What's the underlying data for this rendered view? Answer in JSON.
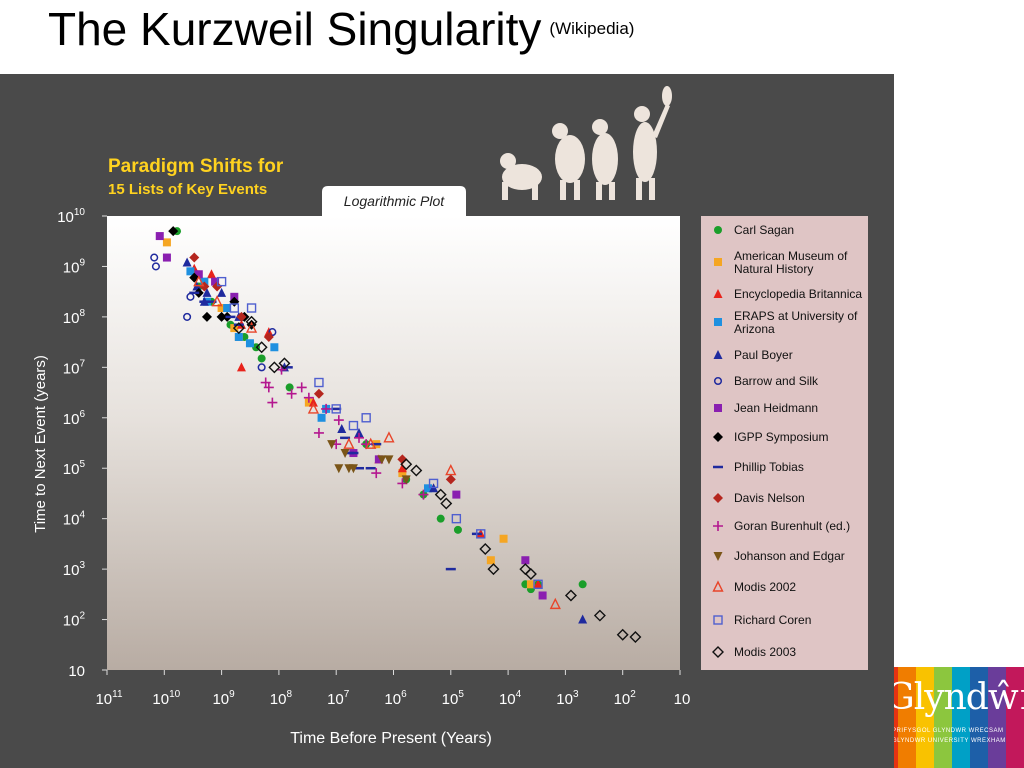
{
  "slide": {
    "title": "The Kurzweil Singularity",
    "title_note": "(Wikipedia)",
    "logo": {
      "wordmark": "Glyndŵr",
      "line1": "PRIFYSGOL GLYNDWR WRECSAM",
      "line2": "GLYNDWR UNIVERSITY WREXHAM"
    }
  },
  "chart_data": {
    "type": "scatter",
    "title": "Paradigm Shifts for",
    "subtitle": "15 Lists of Key Events",
    "tab_label": "Logarithmic Plot",
    "xlabel": "Time Before Present (Years)",
    "ylabel": "Time to Next Event (years)",
    "x_scale": "log-reversed",
    "y_scale": "log",
    "xlim": [
      100000000000,
      10
    ],
    "ylim": [
      10,
      10000000000
    ],
    "x_ticks": [
      {
        "value": 100000000000,
        "label_base": "10",
        "label_exp": "11"
      },
      {
        "value": 10000000000,
        "label_base": "10",
        "label_exp": "10"
      },
      {
        "value": 1000000000,
        "label_base": "10",
        "label_exp": "9"
      },
      {
        "value": 100000000,
        "label_base": "10",
        "label_exp": "8"
      },
      {
        "value": 10000000,
        "label_base": "10",
        "label_exp": "7"
      },
      {
        "value": 1000000,
        "label_base": "10",
        "label_exp": "6"
      },
      {
        "value": 100000,
        "label_base": "10",
        "label_exp": "5"
      },
      {
        "value": 10000,
        "label_base": "10",
        "label_exp": "4"
      },
      {
        "value": 1000,
        "label_base": "10",
        "label_exp": "3"
      },
      {
        "value": 100,
        "label_base": "10",
        "label_exp": "2"
      },
      {
        "value": 10,
        "label_base": "10",
        "label_exp": ""
      }
    ],
    "y_ticks": [
      {
        "value": 10000000000,
        "label_base": "10",
        "label_exp": "10"
      },
      {
        "value": 1000000000,
        "label_base": "10",
        "label_exp": "9"
      },
      {
        "value": 100000000,
        "label_base": "10",
        "label_exp": "8"
      },
      {
        "value": 10000000,
        "label_base": "10",
        "label_exp": "7"
      },
      {
        "value": 1000000,
        "label_base": "10",
        "label_exp": "6"
      },
      {
        "value": 100000,
        "label_base": "10",
        "label_exp": "5"
      },
      {
        "value": 10000,
        "label_base": "10",
        "label_exp": "4"
      },
      {
        "value": 1000,
        "label_base": "10",
        "label_exp": "3"
      },
      {
        "value": 100,
        "label_base": "10",
        "label_exp": "2"
      },
      {
        "value": 10,
        "label_base": "10",
        "label_exp": ""
      }
    ],
    "legend_position": "right",
    "colors": {
      "background": "#4a4a4a",
      "title": "#ffd21f",
      "ticks": "#ffffff"
    },
    "series": [
      {
        "name": "Carl Sagan",
        "marker": "circle",
        "color": "#1a9e2a",
        "points": [
          [
            6000000000,
            5000000000
          ],
          [
            2500000000,
            400000000
          ],
          [
            1500000000,
            200000000
          ],
          [
            700000000,
            70000000
          ],
          [
            400000000,
            40000000
          ],
          [
            250000000,
            25000000
          ],
          [
            200000000,
            15000000
          ],
          [
            65000000,
            4000000
          ],
          [
            3000000,
            300000
          ],
          [
            600000,
            60000
          ],
          [
            300000,
            30000
          ],
          [
            150000,
            10000
          ],
          [
            75000,
            6000
          ],
          [
            5000,
            500
          ],
          [
            4000,
            400
          ],
          [
            3000,
            500
          ],
          [
            500,
            500
          ]
        ]
      },
      {
        "name": "American Museum of Natural History",
        "marker": "square",
        "color": "#f5a623",
        "points": [
          [
            9000000000,
            3000000000
          ],
          [
            2800000000,
            700000000
          ],
          [
            1000000000,
            150000000
          ],
          [
            600000000,
            60000000
          ],
          [
            500000000,
            40000000
          ],
          [
            30000000,
            2000000
          ],
          [
            2000000,
            300000
          ],
          [
            700000,
            80000
          ],
          [
            20000,
            1500
          ],
          [
            12000,
            4000
          ],
          [
            4000,
            500
          ]
        ]
      },
      {
        "name": "Encyclopedia Britannica",
        "marker": "triangle",
        "color": "#e8231b",
        "points": [
          [
            3000000000,
            900000000
          ],
          [
            1500000000,
            700000000
          ],
          [
            450000000,
            70000000
          ],
          [
            450000000,
            10000000
          ],
          [
            150000000,
            50000000
          ],
          [
            25000000,
            2000000
          ],
          [
            1800000,
            150000
          ],
          [
            700000,
            100000
          ],
          [
            30000,
            5000
          ],
          [
            3000,
            500
          ]
        ]
      },
      {
        "name": "ERAPS at University of Arizona",
        "marker": "square",
        "color": "#1e90e0",
        "points": [
          [
            3500000000,
            800000000
          ],
          [
            2000000000,
            500000000
          ],
          [
            1800000000,
            200000000
          ],
          [
            800000000,
            150000000
          ],
          [
            500000000,
            40000000
          ],
          [
            320000000,
            30000000
          ],
          [
            120000000,
            25000000
          ],
          [
            18000000,
            1000000
          ],
          [
            15000000,
            1500000
          ],
          [
            250000,
            40000
          ]
        ]
      },
      {
        "name": "Paul Boyer",
        "marker": "triangle",
        "color": "#1f2a9e",
        "points": [
          [
            4000000000,
            1200000000
          ],
          [
            2700000000,
            400000000
          ],
          [
            2000000000,
            200000000
          ],
          [
            1800000000,
            300000000
          ],
          [
            1000000000,
            300000000
          ],
          [
            500000000,
            100000000
          ],
          [
            80000000,
            10000000
          ],
          [
            8000000,
            600000
          ],
          [
            4000000,
            500000
          ],
          [
            200000,
            40000
          ],
          [
            500,
            100
          ]
        ]
      },
      {
        "name": "Barrow and Silk",
        "marker": "ring",
        "color": "#1f2a9e",
        "points": [
          [
            15000000000,
            1500000000
          ],
          [
            14000000000,
            1000000000
          ],
          [
            4000000000,
            100000000
          ],
          [
            3500000000,
            250000000
          ],
          [
            200000000,
            10000000
          ],
          [
            130000000,
            50000000
          ]
        ]
      },
      {
        "name": "Jean Heidmann",
        "marker": "square",
        "color": "#8a1fb0",
        "points": [
          [
            12000000000,
            4000000000
          ],
          [
            9000000000,
            1500000000
          ],
          [
            2500000000,
            700000000
          ],
          [
            1300000000,
            500000000
          ],
          [
            600000000,
            250000000
          ],
          [
            5000000,
            200000
          ],
          [
            1800000,
            150000
          ],
          [
            80000,
            30000
          ],
          [
            5000,
            1500
          ],
          [
            2500,
            300
          ]
        ]
      },
      {
        "name": "IGPP Symposium",
        "marker": "diamond",
        "color": "#000000",
        "points": [
          [
            7000000000,
            5000000000
          ],
          [
            3000000000,
            600000000
          ],
          [
            2500000000,
            300000000
          ],
          [
            1800000000,
            100000000
          ],
          [
            1000000000,
            100000000
          ],
          [
            800000000,
            100000000
          ],
          [
            600000000,
            200000000
          ],
          [
            400000000,
            100000000
          ],
          [
            300000000,
            70000000
          ]
        ]
      },
      {
        "name": "Phillip Tobias",
        "marker": "dash",
        "color": "#1f2a9e",
        "points": [
          [
            3000000000,
            300000000
          ],
          [
            2000000000,
            200000000
          ],
          [
            1500000000,
            200000000
          ],
          [
            700000000,
            100000000
          ],
          [
            500000000,
            70000000
          ],
          [
            70000000,
            10000000
          ],
          [
            10000000,
            1500000
          ],
          [
            7000000,
            400000
          ],
          [
            6000000,
            200000
          ],
          [
            5000000,
            200000
          ],
          [
            4000000,
            100000
          ],
          [
            2500000,
            100000
          ],
          [
            2000000,
            300000
          ],
          [
            100000,
            1000
          ],
          [
            35000,
            5000
          ]
        ]
      },
      {
        "name": "Davis Nelson",
        "marker": "diamond",
        "color": "#b5261e",
        "points": [
          [
            3000000000,
            1500000000
          ],
          [
            2000000000,
            400000000
          ],
          [
            1200000000,
            400000000
          ],
          [
            450000000,
            100000000
          ],
          [
            150000000,
            40000000
          ],
          [
            20000000,
            3000000
          ],
          [
            700000,
            150000
          ],
          [
            100000,
            60000
          ]
        ]
      },
      {
        "name": "Goran Burenhult (ed.)",
        "marker": "plus",
        "color": "#b4178f",
        "points": [
          [
            170000000,
            5000000
          ],
          [
            150000000,
            4000000
          ],
          [
            130000000,
            2000000
          ],
          [
            90000000,
            9000000
          ],
          [
            60000000,
            3000000
          ],
          [
            40000000,
            4000000
          ],
          [
            30000000,
            2500000
          ],
          [
            20000000,
            500000
          ],
          [
            15000000,
            1500000
          ],
          [
            10000000,
            300000
          ],
          [
            9000000,
            900000
          ],
          [
            4000000,
            400000
          ],
          [
            3000000,
            300000
          ],
          [
            2000000,
            80000
          ],
          [
            700000,
            50000
          ],
          [
            300000,
            30000
          ]
        ]
      },
      {
        "name": "Johanson and Edgar",
        "marker": "invtriangle",
        "color": "#7a5518",
        "points": [
          [
            12000000,
            300000
          ],
          [
            9000000,
            100000
          ],
          [
            7000000,
            200000
          ],
          [
            6000000,
            100000
          ],
          [
            5000000,
            100000
          ],
          [
            1600000,
            150000
          ],
          [
            1200000,
            150000
          ],
          [
            600000,
            60000
          ]
        ]
      },
      {
        "name": "Modis 2002",
        "marker": "opentriangle",
        "color": "#e8452a",
        "points": [
          [
            2500000000,
            500000000
          ],
          [
            1200000000,
            200000000
          ],
          [
            300000000,
            60000000
          ],
          [
            25000000,
            1500000
          ],
          [
            6000000,
            300000
          ],
          [
            2500000,
            300000
          ],
          [
            1200000,
            400000
          ],
          [
            100000,
            90000
          ],
          [
            1500,
            200
          ]
        ]
      },
      {
        "name": "Richard Coren",
        "marker": "opensquare",
        "color": "#4f5fcf",
        "points": [
          [
            1000000000,
            500000000
          ],
          [
            600000000,
            150000000
          ],
          [
            300000000,
            150000000
          ],
          [
            20000000,
            5000000
          ],
          [
            10000000,
            1500000
          ],
          [
            5000000,
            700000
          ],
          [
            3000000,
            1000000
          ],
          [
            200000,
            50000
          ],
          [
            80000,
            10000
          ],
          [
            30000,
            5000
          ],
          [
            3000,
            500
          ]
        ]
      },
      {
        "name": "Modis 2003",
        "marker": "opendiamond",
        "color": "#111111",
        "points": [
          [
            500000000,
            60000000
          ],
          [
            300000000,
            80000000
          ],
          [
            200000000,
            25000000
          ],
          [
            120000000,
            10000000
          ],
          [
            80000000,
            12000000
          ],
          [
            600000,
            120000
          ],
          [
            400000,
            90000
          ],
          [
            150000,
            30000
          ],
          [
            120000,
            20000
          ],
          [
            25000,
            2500
          ],
          [
            18000,
            1000
          ],
          [
            5000,
            1000
          ],
          [
            4000,
            800
          ],
          [
            800,
            300
          ],
          [
            250,
            120
          ],
          [
            100,
            50
          ],
          [
            60,
            45
          ]
        ]
      }
    ]
  }
}
